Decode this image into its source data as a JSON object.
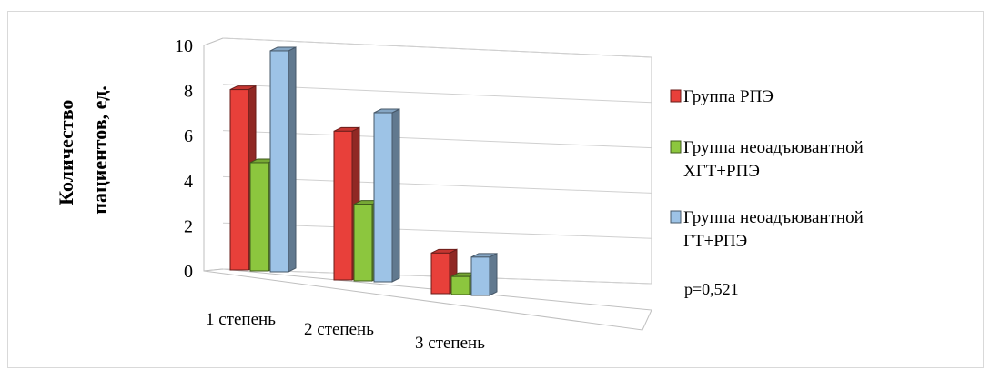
{
  "chart_data": {
    "type": "bar",
    "categories": [
      "1 степень",
      "2 степень",
      "3 степень"
    ],
    "series": [
      {
        "name": "Группа РПЭ",
        "values": [
          8,
          6.6,
          1.8
        ],
        "color": "#e8403a"
      },
      {
        "name": "Группа неоадъювантной ХГТ+РПЭ",
        "values": [
          4.8,
          3.4,
          0.8
        ],
        "color": "#8cc63e"
      },
      {
        "name": "Группа неоадъювантной ГТ+РПЭ",
        "values": [
          9.8,
          7.5,
          1.7
        ],
        "color": "#9dc3e6"
      }
    ],
    "ylabel": "Количество пациентов, ед.",
    "ylim": [
      0,
      10
    ],
    "yticks": [
      0,
      2,
      4,
      6,
      8,
      10
    ],
    "grid": true,
    "legend": "right",
    "annotation": "p=0,521"
  }
}
